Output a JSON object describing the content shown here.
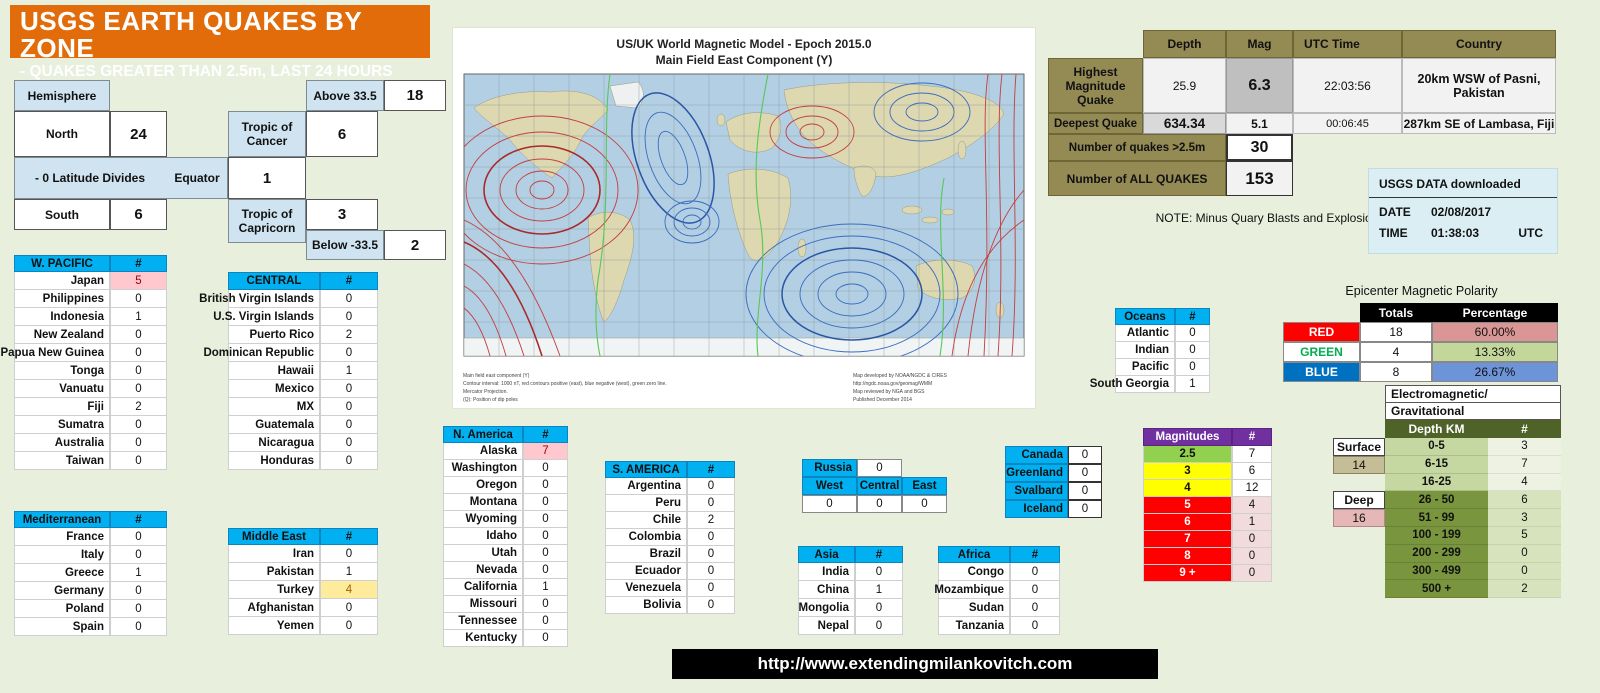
{
  "title": {
    "line1": "USGS EARTH QUAKES BY ZONE",
    "line2": "- QUAKES GREATER THAN 2.5m, LAST 24 HOURS"
  },
  "ui": {
    "hash": "#"
  },
  "hemisphere": {
    "header": "Hemisphere",
    "north": {
      "label": "North",
      "value": "24"
    },
    "south": {
      "label": "South",
      "value": "6"
    },
    "divides": "- 0 Latitude Divides",
    "equator": {
      "label": "Equator",
      "value": "1"
    },
    "cancer": {
      "label": "Tropic of Cancer",
      "value": "6"
    },
    "capricorn": {
      "label": "Tropic of Capricorn",
      "value": "3"
    },
    "above": {
      "label": "Above 33.5",
      "value": "18"
    },
    "below": {
      "label": "Below -33.5",
      "value": "2"
    }
  },
  "regions": {
    "wpacific": {
      "title": "W. PACIFIC",
      "rows": [
        {
          "label": "Japan",
          "value": "5",
          "hl": "pink"
        },
        {
          "label": "Philippines",
          "value": "0",
          "hl": ""
        },
        {
          "label": "Indonesia",
          "value": "1",
          "hl": ""
        },
        {
          "label": "New Zealand",
          "value": "0",
          "hl": ""
        },
        {
          "label": "Papua New Guinea",
          "value": "0",
          "hl": ""
        },
        {
          "label": "Tonga",
          "value": "0",
          "hl": ""
        },
        {
          "label": "Vanuatu",
          "value": "0",
          "hl": ""
        },
        {
          "label": "Fiji",
          "value": "2",
          "hl": ""
        },
        {
          "label": "Sumatra",
          "value": "0",
          "hl": ""
        },
        {
          "label": "Australia",
          "value": "0",
          "hl": ""
        },
        {
          "label": "Taiwan",
          "value": "0",
          "hl": ""
        }
      ]
    },
    "central": {
      "title": "CENTRAL",
      "rows": [
        {
          "label": "British Virgin Islands",
          "value": "0",
          "hl": ""
        },
        {
          "label": "U.S. Virgin Islands",
          "value": "0",
          "hl": ""
        },
        {
          "label": "Puerto Rico",
          "value": "2",
          "hl": ""
        },
        {
          "label": "Dominican Republic",
          "value": "0",
          "hl": ""
        },
        {
          "label": "Hawaii",
          "value": "1",
          "hl": ""
        },
        {
          "label": "Mexico",
          "value": "0",
          "hl": ""
        },
        {
          "label": "MX",
          "value": "0",
          "hl": ""
        },
        {
          "label": "Guatemala",
          "value": "0",
          "hl": ""
        },
        {
          "label": "Nicaragua",
          "value": "0",
          "hl": ""
        },
        {
          "label": "Honduras",
          "value": "0",
          "hl": ""
        }
      ]
    },
    "mediterranean": {
      "title": "Mediterranean",
      "rows": [
        {
          "label": "France",
          "value": "0",
          "hl": ""
        },
        {
          "label": "Italy",
          "value": "0",
          "hl": ""
        },
        {
          "label": "Greece",
          "value": "1",
          "hl": ""
        },
        {
          "label": "Germany",
          "value": "0",
          "hl": ""
        },
        {
          "label": "Poland",
          "value": "0",
          "hl": ""
        },
        {
          "label": "Spain",
          "value": "0",
          "hl": ""
        }
      ]
    },
    "middleeast": {
      "title": "Middle East",
      "rows": [
        {
          "label": "Iran",
          "value": "0",
          "hl": ""
        },
        {
          "label": "Pakistan",
          "value": "1",
          "hl": ""
        },
        {
          "label": "Turkey",
          "value": "4",
          "hl": "yellow"
        },
        {
          "label": "Afghanistan",
          "value": "0",
          "hl": ""
        },
        {
          "label": "Yemen",
          "value": "0",
          "hl": ""
        }
      ]
    },
    "namerica": {
      "title": "N. America",
      "rows": [
        {
          "label": "Alaska",
          "value": "7",
          "hl": "pink"
        },
        {
          "label": "Washington",
          "value": "0",
          "hl": ""
        },
        {
          "label": "Oregon",
          "value": "0",
          "hl": ""
        },
        {
          "label": "Montana",
          "value": "0",
          "hl": ""
        },
        {
          "label": "Wyoming",
          "value": "0",
          "hl": ""
        },
        {
          "label": "Idaho",
          "value": "0",
          "hl": ""
        },
        {
          "label": "Utah",
          "value": "0",
          "hl": ""
        },
        {
          "label": "Nevada",
          "value": "0",
          "hl": ""
        },
        {
          "label": "California",
          "value": "1",
          "hl": ""
        },
        {
          "label": "Missouri",
          "value": "0",
          "hl": ""
        },
        {
          "label": "Tennessee",
          "value": "0",
          "hl": ""
        },
        {
          "label": "Kentucky",
          "value": "0",
          "hl": ""
        }
      ]
    },
    "samerica": {
      "title": "S. AMERICA",
      "rows": [
        {
          "label": "Argentina",
          "value": "0",
          "hl": ""
        },
        {
          "label": "Peru",
          "value": "0",
          "hl": ""
        },
        {
          "label": "Chile",
          "value": "2",
          "hl": ""
        },
        {
          "label": "Colombia",
          "value": "0",
          "hl": ""
        },
        {
          "label": "Brazil",
          "value": "0",
          "hl": ""
        },
        {
          "label": "Ecuador",
          "value": "0",
          "hl": ""
        },
        {
          "label": "Venezuela",
          "value": "0",
          "hl": ""
        },
        {
          "label": "Bolivia",
          "value": "0",
          "hl": ""
        }
      ]
    },
    "asia": {
      "title": "Asia",
      "rows": [
        {
          "label": "India",
          "value": "0",
          "hl": ""
        },
        {
          "label": "China",
          "value": "1",
          "hl": ""
        },
        {
          "label": "Mongolia",
          "value": "0",
          "hl": ""
        },
        {
          "label": "Nepal",
          "value": "0",
          "hl": ""
        }
      ]
    },
    "africa": {
      "title": "Africa",
      "rows": [
        {
          "label": "Congo",
          "value": "0",
          "hl": ""
        },
        {
          "label": "Mozambique",
          "value": "0",
          "hl": ""
        },
        {
          "label": "Sudan",
          "value": "0",
          "hl": ""
        },
        {
          "label": "Tanzania",
          "value": "0",
          "hl": ""
        }
      ]
    },
    "oceans": {
      "title": "Oceans",
      "rows": [
        {
          "label": "Atlantic",
          "value": "0",
          "hl": ""
        },
        {
          "label": "Indian",
          "value": "0",
          "hl": ""
        },
        {
          "label": "Pacific",
          "value": "0",
          "hl": ""
        },
        {
          "label": "South Georgia",
          "value": "1",
          "hl": ""
        }
      ]
    }
  },
  "russia": {
    "label": "Russia",
    "value": "0",
    "cols": [
      "West",
      "Central",
      "East"
    ],
    "values": [
      "0",
      "0",
      "0"
    ]
  },
  "arctic": {
    "rows": [
      {
        "label": "Canada",
        "value": "0"
      },
      {
        "label": "Greenland",
        "value": "0"
      },
      {
        "label": "Svalbard",
        "value": "0"
      },
      {
        "label": "Iceland",
        "value": "0"
      }
    ]
  },
  "quake_info": {
    "headers": {
      "depth": "Depth",
      "mag": "Mag",
      "utc": "UTC Time",
      "country": "Country"
    },
    "highest": {
      "label": "Highest Magnitude Quake",
      "depth": "25.9",
      "mag": "6.3",
      "utc": "22:03:56",
      "country": "20km WSW of Pasni, Pakistan"
    },
    "deepest": {
      "label": "Deepest Quake",
      "depth": "634.34",
      "mag": "5.1",
      "utc": "00:06:45",
      "country": "287km SE of Lambasa, Fiji"
    },
    "count_gt": {
      "label": "Number of quakes >2.5m",
      "value": "30"
    },
    "count_all": {
      "label": "Number of ALL QUAKES",
      "value": "153"
    },
    "note": "NOTE:  Minus Quary Blasts and Explosions"
  },
  "usgs_download": {
    "title": "USGS DATA downloaded",
    "date_label": "DATE",
    "date": "02/08/2017",
    "time_label": "TIME",
    "time": "01:38:03",
    "tz": "UTC"
  },
  "polarity": {
    "title": "Epicenter Magnetic Polarity",
    "totals_header": "Totals",
    "pct_header": "Percentage",
    "rows": [
      {
        "label": "RED",
        "total": "18",
        "pct": "60.00%",
        "lcls": "pol-red",
        "pcls": "pct-red"
      },
      {
        "label": "GREEN",
        "total": "4",
        "pct": "13.33%",
        "lcls": "pol-green",
        "pcls": "pct-green"
      },
      {
        "label": "BLUE",
        "total": "8",
        "pct": "26.67%",
        "lcls": "pol-blue",
        "pcls": "pct-blue"
      }
    ]
  },
  "magnitudes": {
    "title": "Magnitudes",
    "rows": [
      {
        "m": "2.5",
        "c": "7",
        "mcls": "mg-green",
        "ccls": ""
      },
      {
        "m": "3",
        "c": "6",
        "mcls": "mg-yellow",
        "ccls": ""
      },
      {
        "m": "4",
        "c": "12",
        "mcls": "mg-yellow",
        "ccls": ""
      },
      {
        "m": "5",
        "c": "4",
        "mcls": "mg-red",
        "ccls": "cnt-pink"
      },
      {
        "m": "6",
        "c": "1",
        "mcls": "mg-red",
        "ccls": "cnt-pink"
      },
      {
        "m": "7",
        "c": "0",
        "mcls": "mg-red",
        "ccls": "cnt-pink"
      },
      {
        "m": "8",
        "c": "0",
        "mcls": "mg-red",
        "ccls": "cnt-pink"
      },
      {
        "m": "9 +",
        "c": "0",
        "mcls": "mg-red",
        "ccls": "cnt-pink"
      }
    ]
  },
  "depth": {
    "em1": "Electromagnetic/",
    "em2": "Gravitational",
    "header": "Depth KM",
    "surface_label": "Surface",
    "surface_count": "14",
    "deep_label": "Deep",
    "deep_count": "16",
    "rows": [
      {
        "r": "0-5",
        "c": "3",
        "rcls": "dp-l",
        "ccls": "dc-l"
      },
      {
        "r": "6-15",
        "c": "7",
        "rcls": "dp-l",
        "ccls": "dc-l"
      },
      {
        "r": "16-25",
        "c": "4",
        "rcls": "dp-l",
        "ccls": "dc-l"
      },
      {
        "r": "26 - 50",
        "c": "6",
        "rcls": "dp-d",
        "ccls": "dc-d"
      },
      {
        "r": "51 - 99",
        "c": "3",
        "rcls": "dp-d",
        "ccls": "dc-d"
      },
      {
        "r": "100 - 199",
        "c": "5",
        "rcls": "dp-d",
        "ccls": "dc-d"
      },
      {
        "r": "200 - 299",
        "c": "0",
        "rcls": "dp-d",
        "ccls": "dc-d"
      },
      {
        "r": "300 - 499",
        "c": "0",
        "rcls": "dp-d",
        "ccls": "dc-d"
      },
      {
        "r": "500 +",
        "c": "2",
        "rcls": "dp-d",
        "ccls": "dc-d"
      }
    ]
  },
  "map": {
    "title1": "US/UK World Magnetic Model - Epoch 2015.0",
    "title2": "Main Field East Component (Y)",
    "notes_left": [
      {
        "t": "Main field east component (Y)"
      },
      {
        "t": "Contour interval: 1000 nT, red contours positive (east), blue negative (west), green zero line."
      },
      {
        "t": "Mercator Projection."
      },
      {
        "t": "(Q): Position of dip poles"
      }
    ],
    "notes_right": [
      {
        "t": "Map developed by NOAA/NGDC & CIRES"
      },
      {
        "t": "http://ngdc.noaa.gov/geomag/WMM"
      },
      {
        "t": "Map reviewed by NGA and BGS"
      },
      {
        "t": "Published December 2014"
      }
    ]
  },
  "footer": {
    "url": "http://www.extendingmilankovitch.com"
  },
  "colors": {
    "accent_orange": "#e36c0a",
    "header_cyan": "#00b0f0",
    "olive": "#948a54",
    "purple": "#7030a0",
    "polarity_red": "#ff0000",
    "polarity_green": "#00b050",
    "polarity_blue": "#0070c0"
  }
}
